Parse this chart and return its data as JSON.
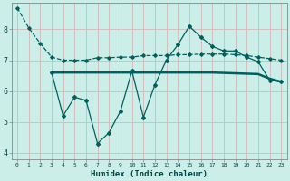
{
  "xlabel": "Humidex (Indice chaleur)",
  "bg_color": "#cceee8",
  "grid_color": "#aad4ce",
  "line_color": "#006060",
  "line1_x": [
    0,
    1,
    2,
    3,
    4,
    5,
    6,
    7,
    8,
    9,
    10,
    11,
    12,
    13,
    14,
    15,
    16,
    17,
    18,
    19,
    20,
    21,
    22,
    23
  ],
  "line1_y": [
    8.7,
    8.05,
    7.55,
    7.1,
    7.0,
    7.0,
    7.0,
    7.08,
    7.08,
    7.1,
    7.1,
    7.15,
    7.15,
    7.15,
    7.18,
    7.18,
    7.2,
    7.2,
    7.2,
    7.18,
    7.15,
    7.1,
    7.05,
    7.0
  ],
  "line2_x": [
    3,
    10,
    17,
    21,
    22,
    23
  ],
  "line2_y": [
    6.6,
    6.6,
    6.6,
    6.55,
    6.4,
    6.3
  ],
  "line3_x": [
    3,
    4,
    5,
    6,
    7,
    8,
    9,
    10,
    11,
    12,
    13,
    14,
    15,
    16,
    17,
    18,
    19,
    20,
    21,
    22,
    23
  ],
  "line3_y": [
    6.6,
    5.2,
    5.8,
    5.7,
    4.3,
    4.65,
    5.35,
    6.65,
    5.15,
    6.2,
    7.0,
    7.5,
    8.1,
    7.75,
    7.45,
    7.3,
    7.3,
    7.1,
    6.95,
    6.35,
    6.3
  ],
  "ylim": [
    3.8,
    8.85
  ],
  "xlim": [
    -0.5,
    23.5
  ],
  "yticks": [
    4,
    5,
    6,
    7,
    8
  ],
  "xticks": [
    0,
    1,
    2,
    3,
    4,
    5,
    6,
    7,
    8,
    9,
    10,
    11,
    12,
    13,
    14,
    15,
    16,
    17,
    18,
    19,
    20,
    21,
    22,
    23
  ]
}
